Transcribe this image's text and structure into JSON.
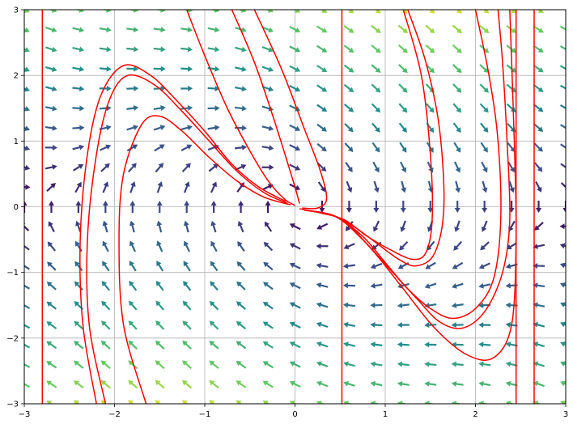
{
  "chart_data": {
    "type": "vector-field",
    "title": "",
    "xlabel": "",
    "ylabel": "",
    "xlim": [
      -3,
      3
    ],
    "ylim": [
      -3,
      3
    ],
    "x_ticks": [
      -3,
      -2,
      -1,
      0,
      1,
      2,
      3
    ],
    "y_ticks": [
      -3,
      -2,
      -1,
      0,
      1,
      2,
      3
    ],
    "x_tick_labels": [
      "−3",
      "−2",
      "−1",
      "0",
      "1",
      "2",
      "3"
    ],
    "y_tick_labels": [
      "−3",
      "−2",
      "−1",
      "0",
      "1",
      "2",
      "3"
    ],
    "grid": true,
    "field": "dx/dt = y, dy/dt = -sin(x) - 0.5*y (damped pendulum, approx.)",
    "arrow_grid": {
      "x_step": 0.3,
      "y_step": 0.3
    },
    "colormap": [
      "#440154",
      "#3b528b",
      "#21918c",
      "#5ec962",
      "#fde725"
    ],
    "trajectory_color": "#ff0000",
    "vertical_lines_x": [
      -2.8,
      0.52,
      2.45,
      2.65
    ],
    "trajectories": [
      [
        [
          -2.2,
          -3.0
        ],
        [
          -2.35,
          -1.8
        ],
        [
          -2.38,
          -0.5
        ],
        [
          -2.3,
          0.8
        ],
        [
          -2.15,
          1.7
        ],
        [
          -1.9,
          2.15
        ],
        [
          -1.6,
          2.0
        ],
        [
          -1.3,
          1.6
        ],
        [
          -1.0,
          1.15
        ],
        [
          -0.7,
          0.65
        ],
        [
          -0.4,
          0.3
        ],
        [
          -0.1,
          0.08
        ]
      ],
      [
        [
          -2.1,
          -3.0
        ],
        [
          -2.28,
          -1.8
        ],
        [
          -2.3,
          -0.5
        ],
        [
          -2.2,
          0.8
        ],
        [
          -2.05,
          1.65
        ],
        [
          -1.85,
          2.0
        ],
        [
          -1.55,
          1.85
        ],
        [
          -1.25,
          1.45
        ],
        [
          -0.95,
          1.0
        ],
        [
          -0.65,
          0.55
        ],
        [
          -0.35,
          0.22
        ],
        [
          -0.08,
          0.05
        ]
      ],
      [
        [
          -1.65,
          -3.0
        ],
        [
          -1.9,
          -1.8
        ],
        [
          -1.95,
          -0.5
        ],
        [
          -1.9,
          0.5
        ],
        [
          -1.7,
          1.25
        ],
        [
          -1.5,
          1.38
        ],
        [
          -1.25,
          1.15
        ],
        [
          -0.95,
          0.75
        ],
        [
          -0.65,
          0.4
        ],
        [
          -0.35,
          0.15
        ],
        [
          -0.05,
          0.03
        ]
      ],
      [
        [
          -1.2,
          3.0
        ],
        [
          -1.0,
          2.3
        ],
        [
          -0.75,
          1.5
        ],
        [
          -0.5,
          0.85
        ],
        [
          -0.3,
          0.4
        ],
        [
          -0.12,
          0.12
        ],
        [
          0.0,
          0.02
        ]
      ],
      [
        [
          -0.7,
          3.0
        ],
        [
          -0.45,
          2.2
        ],
        [
          -0.25,
          1.4
        ],
        [
          -0.1,
          0.75
        ],
        [
          0.0,
          0.3
        ],
        [
          0.05,
          0.05
        ]
      ],
      [
        [
          -0.45,
          3.0
        ],
        [
          -0.15,
          2.1
        ],
        [
          0.1,
          1.2
        ],
        [
          0.28,
          0.55
        ],
        [
          0.35,
          0.12
        ],
        [
          0.25,
          -0.02
        ],
        [
          0.08,
          -0.02
        ]
      ],
      [
        [
          0.05,
          -0.03
        ],
        [
          0.3,
          -0.1
        ],
        [
          0.55,
          -0.2
        ],
        [
          0.8,
          -0.45
        ],
        [
          1.05,
          -0.65
        ],
        [
          1.3,
          -0.8
        ],
        [
          1.45,
          -0.7
        ],
        [
          1.52,
          -0.2
        ],
        [
          1.5,
          0.8
        ],
        [
          1.4,
          2.0
        ],
        [
          1.2,
          3.0
        ]
      ],
      [
        [
          0.1,
          -0.05
        ],
        [
          0.4,
          -0.12
        ],
        [
          0.65,
          -0.3
        ],
        [
          0.9,
          -0.55
        ],
        [
          1.15,
          -0.8
        ],
        [
          1.35,
          -0.9
        ],
        [
          1.55,
          -0.7
        ],
        [
          1.65,
          0.0
        ],
        [
          1.6,
          1.2
        ],
        [
          1.45,
          2.2
        ],
        [
          1.25,
          3.0
        ]
      ],
      [
        [
          0.1,
          -0.05
        ],
        [
          0.45,
          -0.15
        ],
        [
          0.75,
          -0.45
        ],
        [
          1.0,
          -0.85
        ],
        [
          1.25,
          -1.25
        ],
        [
          1.5,
          -1.55
        ],
        [
          1.75,
          -1.7
        ],
        [
          2.0,
          -1.55
        ],
        [
          2.2,
          -1.1
        ],
        [
          2.28,
          -0.2
        ],
        [
          2.25,
          1.0
        ],
        [
          2.15,
          2.0
        ],
        [
          2.0,
          3.0
        ]
      ],
      [
        [
          0.1,
          -0.05
        ],
        [
          0.45,
          -0.15
        ],
        [
          0.75,
          -0.5
        ],
        [
          1.05,
          -0.95
        ],
        [
          1.35,
          -1.4
        ],
        [
          1.6,
          -1.75
        ],
        [
          1.85,
          -1.85
        ],
        [
          2.1,
          -1.6
        ],
        [
          2.3,
          -1.0
        ],
        [
          2.38,
          -0.2
        ],
        [
          2.35,
          1.0
        ],
        [
          2.3,
          2.2
        ],
        [
          2.25,
          3.0
        ]
      ],
      [
        [
          0.1,
          -0.05
        ],
        [
          0.5,
          -0.18
        ],
        [
          0.85,
          -0.65
        ],
        [
          1.2,
          -1.25
        ],
        [
          1.55,
          -1.85
        ],
        [
          1.9,
          -2.25
        ],
        [
          2.2,
          -2.3
        ],
        [
          2.4,
          -1.8
        ],
        [
          2.45,
          -0.5
        ],
        [
          2.43,
          1.0
        ],
        [
          2.38,
          3.0
        ]
      ]
    ]
  }
}
